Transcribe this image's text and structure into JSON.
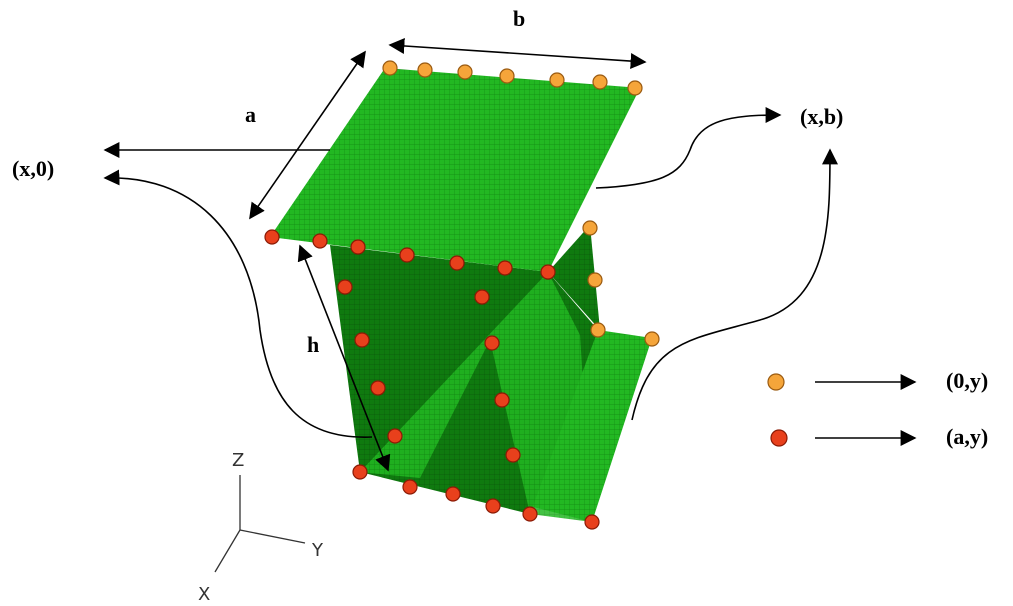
{
  "dimensions": {
    "b": "b",
    "a": "a",
    "h": "h"
  },
  "edges": {
    "x0": "(x,0)",
    "xb": "(x,b)"
  },
  "legend": [
    {
      "label": "(0,y)"
    },
    {
      "label": "(a,y)"
    }
  ],
  "axes": {
    "z": "Z",
    "y": "Y",
    "x": "X"
  }
}
